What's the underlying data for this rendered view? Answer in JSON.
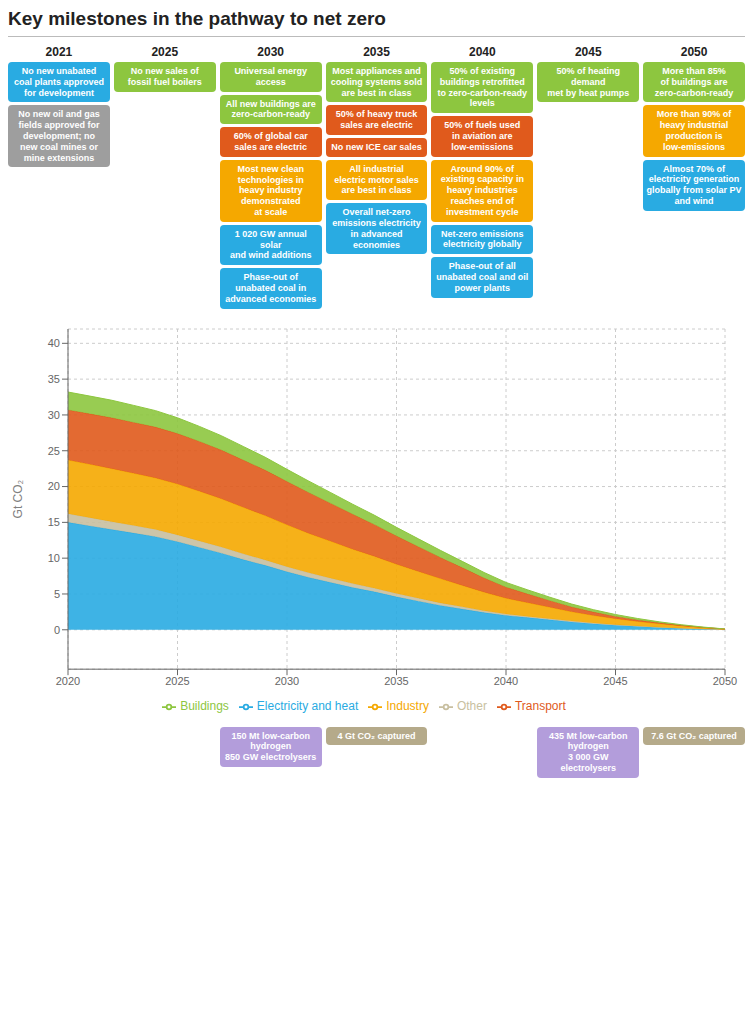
{
  "chart_data": {
    "type": "area",
    "stacked": true,
    "title": "Key milestones in the pathway to net zero",
    "y_label": "Gt CO₂",
    "x": [
      2020,
      2021,
      2022,
      2023,
      2024,
      2025,
      2026,
      2027,
      2028,
      2029,
      2030,
      2031,
      2032,
      2033,
      2034,
      2035,
      2036,
      2037,
      2038,
      2039,
      2040,
      2041,
      2042,
      2043,
      2044,
      2045,
      2046,
      2047,
      2048,
      2049,
      2050
    ],
    "series": [
      {
        "name": "Electricity and heat",
        "color": "#29abe2",
        "values": [
          15.0,
          14.5,
          14.0,
          13.5,
          13.0,
          12.3,
          11.5,
          10.7,
          9.8,
          9.0,
          8.1,
          7.3,
          6.6,
          5.9,
          5.3,
          4.6,
          4.0,
          3.4,
          2.9,
          2.4,
          2.0,
          1.7,
          1.4,
          1.1,
          0.85,
          0.65,
          0.48,
          0.33,
          0.2,
          0.1,
          0.03
        ]
      },
      {
        "name": "Other",
        "color": "#c8bfa0",
        "values": [
          1.2,
          1.15,
          1.1,
          1.05,
          1.0,
          0.95,
          0.9,
          0.85,
          0.8,
          0.75,
          0.7,
          0.65,
          0.6,
          0.55,
          0.5,
          0.45,
          0.4,
          0.35,
          0.3,
          0.25,
          0.2,
          0.17,
          0.14,
          0.11,
          0.09,
          0.07,
          0.05,
          0.04,
          0.03,
          0.02,
          0.01
        ]
      },
      {
        "name": "Industry",
        "color": "#f5a800",
        "values": [
          7.5,
          7.45,
          7.4,
          7.3,
          7.2,
          7.1,
          6.95,
          6.75,
          6.5,
          6.2,
          5.85,
          5.5,
          5.15,
          4.8,
          4.45,
          4.1,
          3.75,
          3.4,
          3.0,
          2.6,
          2.2,
          1.9,
          1.6,
          1.3,
          1.05,
          0.82,
          0.63,
          0.46,
          0.31,
          0.17,
          0.05
        ]
      },
      {
        "name": "Transport",
        "color": "#e05a1c",
        "values": [
          7.0,
          7.05,
          7.1,
          7.1,
          7.1,
          7.05,
          6.95,
          6.8,
          6.6,
          6.35,
          6.05,
          5.7,
          5.3,
          4.88,
          4.43,
          3.95,
          3.45,
          2.95,
          2.48,
          1.98,
          1.55,
          1.22,
          0.93,
          0.68,
          0.48,
          0.33,
          0.22,
          0.14,
          0.08,
          0.04,
          0.01
        ]
      },
      {
        "name": "Buildings",
        "color": "#8dc63f",
        "values": [
          2.5,
          2.48,
          2.45,
          2.38,
          2.3,
          2.2,
          2.1,
          2.0,
          1.9,
          1.8,
          1.7,
          1.6,
          1.5,
          1.4,
          1.3,
          1.2,
          1.1,
          1.0,
          0.88,
          0.77,
          0.66,
          0.57,
          0.48,
          0.4,
          0.33,
          0.26,
          0.2,
          0.14,
          0.09,
          0.05,
          0.01
        ]
      }
    ],
    "xlim": [
      2020,
      2050
    ],
    "xticks": [
      2020,
      2025,
      2030,
      2035,
      2040,
      2045,
      2050
    ],
    "ylim": [
      -5.5,
      42
    ],
    "yticks": [
      0,
      5,
      10,
      15,
      20,
      25,
      30,
      35,
      40
    ],
    "grid": true,
    "legend": "bottom",
    "annotations": [
      {
        "year": 2021,
        "items": [
          {
            "text": "No new unabated\ncoal plants approved\nfor development",
            "color": "#29abe2"
          },
          {
            "text": "No new oil and gas\nfields approved for\ndevelopment; no\nnew coal mines or\nmine extensions",
            "color": "#9e9e9e"
          }
        ],
        "below": []
      },
      {
        "year": 2025,
        "items": [
          {
            "text": "No new sales of\nfossil fuel boilers",
            "color": "#8dc63f"
          }
        ],
        "below": []
      },
      {
        "year": 2030,
        "items": [
          {
            "text": "Universal energy access",
            "color": "#8dc63f"
          },
          {
            "text": "All new buildings are\nzero-carbon-ready",
            "color": "#8dc63f"
          },
          {
            "text": "60% of global car\nsales are electric",
            "color": "#e05a1c"
          },
          {
            "text": "Most new clean\ntechnologies in\nheavy industry\ndemonstrated\nat scale",
            "color": "#f5a800"
          },
          {
            "text": "1 020 GW annual solar\nand wind additions",
            "color": "#29abe2"
          },
          {
            "text": "Phase-out of\nunabated coal in\nadvanced economies",
            "color": "#29abe2"
          }
        ],
        "below": [
          {
            "text": "150 Mt low-carbon hydrogen\n850 GW electrolysers",
            "color": "#b39ddb"
          }
        ]
      },
      {
        "year": 2035,
        "items": [
          {
            "text": "Most appliances and\ncooling systems sold\nare best in class",
            "color": "#8dc63f"
          },
          {
            "text": "50% of heavy truck\nsales are electric",
            "color": "#e05a1c"
          },
          {
            "text": "No new ICE car sales",
            "color": "#e05a1c"
          },
          {
            "text": "All industrial\nelectric motor sales\nare best in class",
            "color": "#f5a800"
          },
          {
            "text": "Overall net-zero\nemissions electricity\nin advanced\neconomies",
            "color": "#29abe2"
          }
        ],
        "below": [
          {
            "text": "4 Gt CO₂ captured",
            "color": "#b5aa8a"
          }
        ]
      },
      {
        "year": 2040,
        "items": [
          {
            "text": "50% of existing\nbuildings retrofitted\nto zero-carbon-ready\nlevels",
            "color": "#8dc63f"
          },
          {
            "text": "50% of fuels used\nin aviation are\nlow-emissions",
            "color": "#e05a1c"
          },
          {
            "text": "Around 90% of\nexisting capacity in\nheavy industries\nreaches end of\ninvestment cycle",
            "color": "#f5a800"
          },
          {
            "text": "Net-zero emissions\nelectricity globally",
            "color": "#29abe2"
          },
          {
            "text": "Phase-out of all\nunabated coal and oil\npower plants",
            "color": "#29abe2"
          }
        ],
        "below": []
      },
      {
        "year": 2045,
        "items": [
          {
            "text": "50% of heating demand\nmet by heat pumps",
            "color": "#8dc63f"
          }
        ],
        "below": [
          {
            "text": "435 Mt low-carbon hydrogen\n3 000 GW electrolysers",
            "color": "#b39ddb"
          }
        ]
      },
      {
        "year": 2050,
        "items": [
          {
            "text": "More than 85%\nof buildings are\nzero-carbon-ready",
            "color": "#8dc63f"
          },
          {
            "text": "More than 90% of\nheavy industrial\nproduction is\nlow-emissions",
            "color": "#f5a800"
          },
          {
            "text": "Almost 70% of\nelectricity generation\nglobally from solar PV\nand wind",
            "color": "#29abe2"
          }
        ],
        "below": [
          {
            "text": "7.6 Gt CO₂ captured",
            "color": "#b5aa8a"
          }
        ]
      }
    ]
  }
}
